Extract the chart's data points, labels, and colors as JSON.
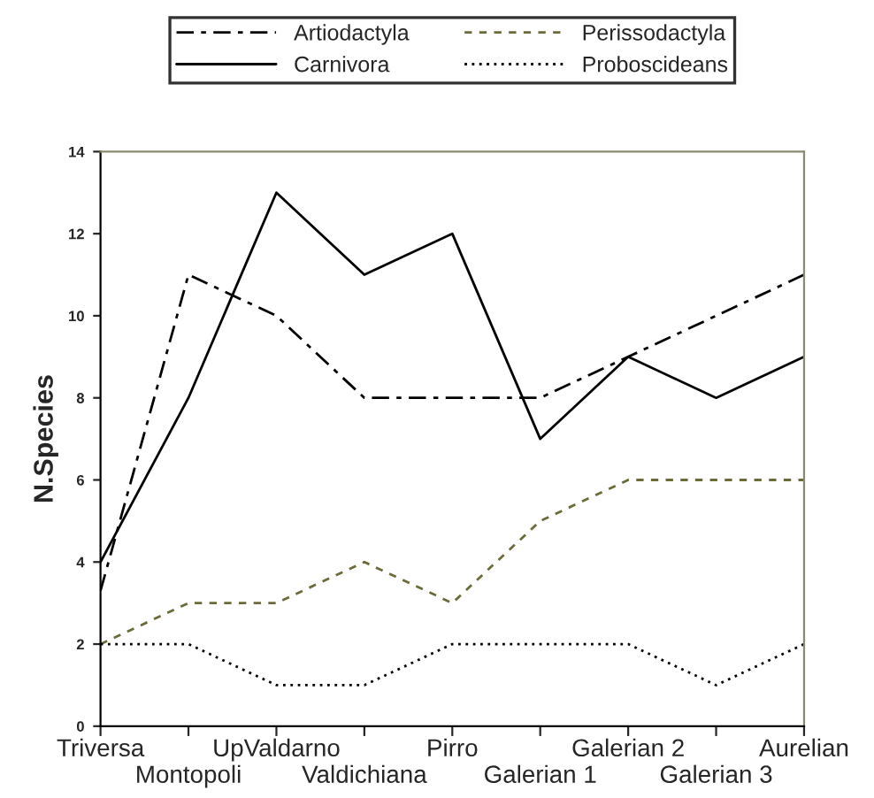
{
  "chart_data": {
    "type": "line",
    "ylabel": "N.Species",
    "categories": [
      "Triversa",
      "Montopoli",
      "UpValdarno",
      "Valdichiana",
      "Pirro",
      "Galerian 1",
      "Galerian 2",
      "Galerian 3",
      "Aurelian"
    ],
    "series": [
      {
        "name": "Artiodactyla",
        "color": "#000000",
        "line_style": "dashdot",
        "values": [
          3.3,
          11,
          10,
          8,
          8,
          8,
          9,
          10,
          11
        ]
      },
      {
        "name": "Carnivora",
        "color": "#000000",
        "line_style": "solid",
        "values": [
          4,
          8,
          13,
          11,
          12,
          7,
          9,
          8,
          9
        ]
      },
      {
        "name": "Perissodactyla",
        "color": "#6b6b3a",
        "line_style": "dashed",
        "values": [
          2,
          3,
          3,
          4,
          3,
          5,
          6,
          6,
          6
        ]
      },
      {
        "name": "Proboscideans",
        "color": "#000000",
        "line_style": "dotted",
        "values": [
          2,
          2,
          1,
          1,
          2,
          2,
          2,
          1,
          2
        ]
      }
    ],
    "ylim": [
      0,
      14
    ],
    "yticks": [
      0,
      2,
      4,
      6,
      8,
      10,
      12,
      14
    ],
    "grid": false,
    "legend": "top",
    "marker": "none"
  }
}
